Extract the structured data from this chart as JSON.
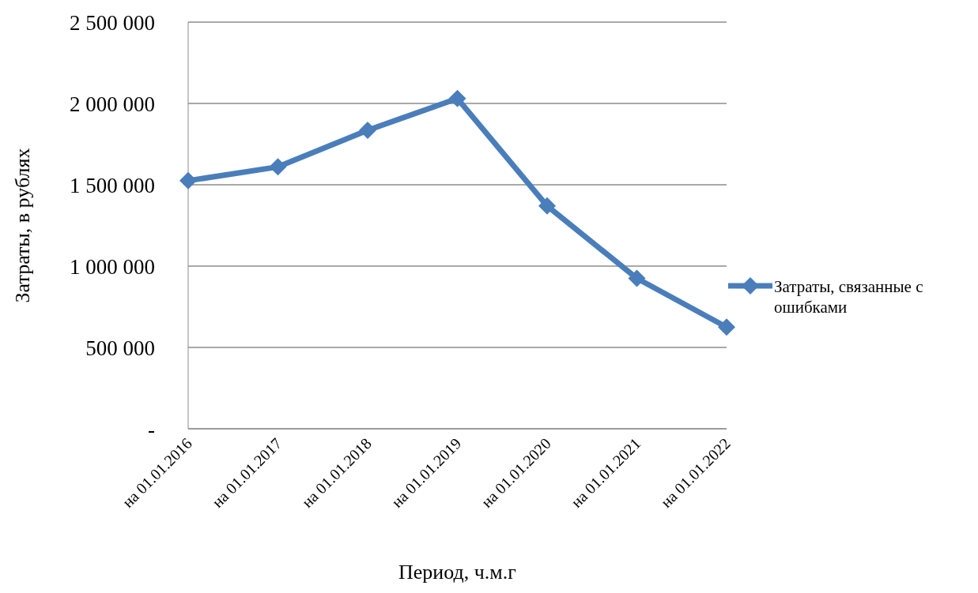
{
  "chart_data": {
    "type": "line",
    "xlabel": "Период, ч.м.г",
    "ylabel": "Затраты, в рублях",
    "categories": [
      "на 01.01.2016",
      "на 01.01.2017",
      "на 01.01.2018",
      "на 01.01.2019",
      "на 01.01.2020",
      "на 01.01.2021",
      "на 01.01.2022"
    ],
    "series": [
      {
        "name": "Затраты, связанные с ошибками",
        "color": "#4a7ebb",
        "values": [
          1525000,
          1610000,
          1835000,
          2030000,
          1370000,
          925000,
          625000
        ]
      }
    ],
    "ylim": [
      0,
      2500000
    ],
    "yticks": [
      {
        "value": 0,
        "label": "-"
      },
      {
        "value": 500000,
        "label": "500 000"
      },
      {
        "value": 1000000,
        "label": "1 000 000"
      },
      {
        "value": 1500000,
        "label": "1 500 000"
      },
      {
        "value": 2000000,
        "label": "2 000 000"
      },
      {
        "value": 2500000,
        "label": "2 500 000"
      }
    ],
    "grid": "y",
    "legend": "right",
    "marker": "diamond",
    "line_style": "solid"
  }
}
